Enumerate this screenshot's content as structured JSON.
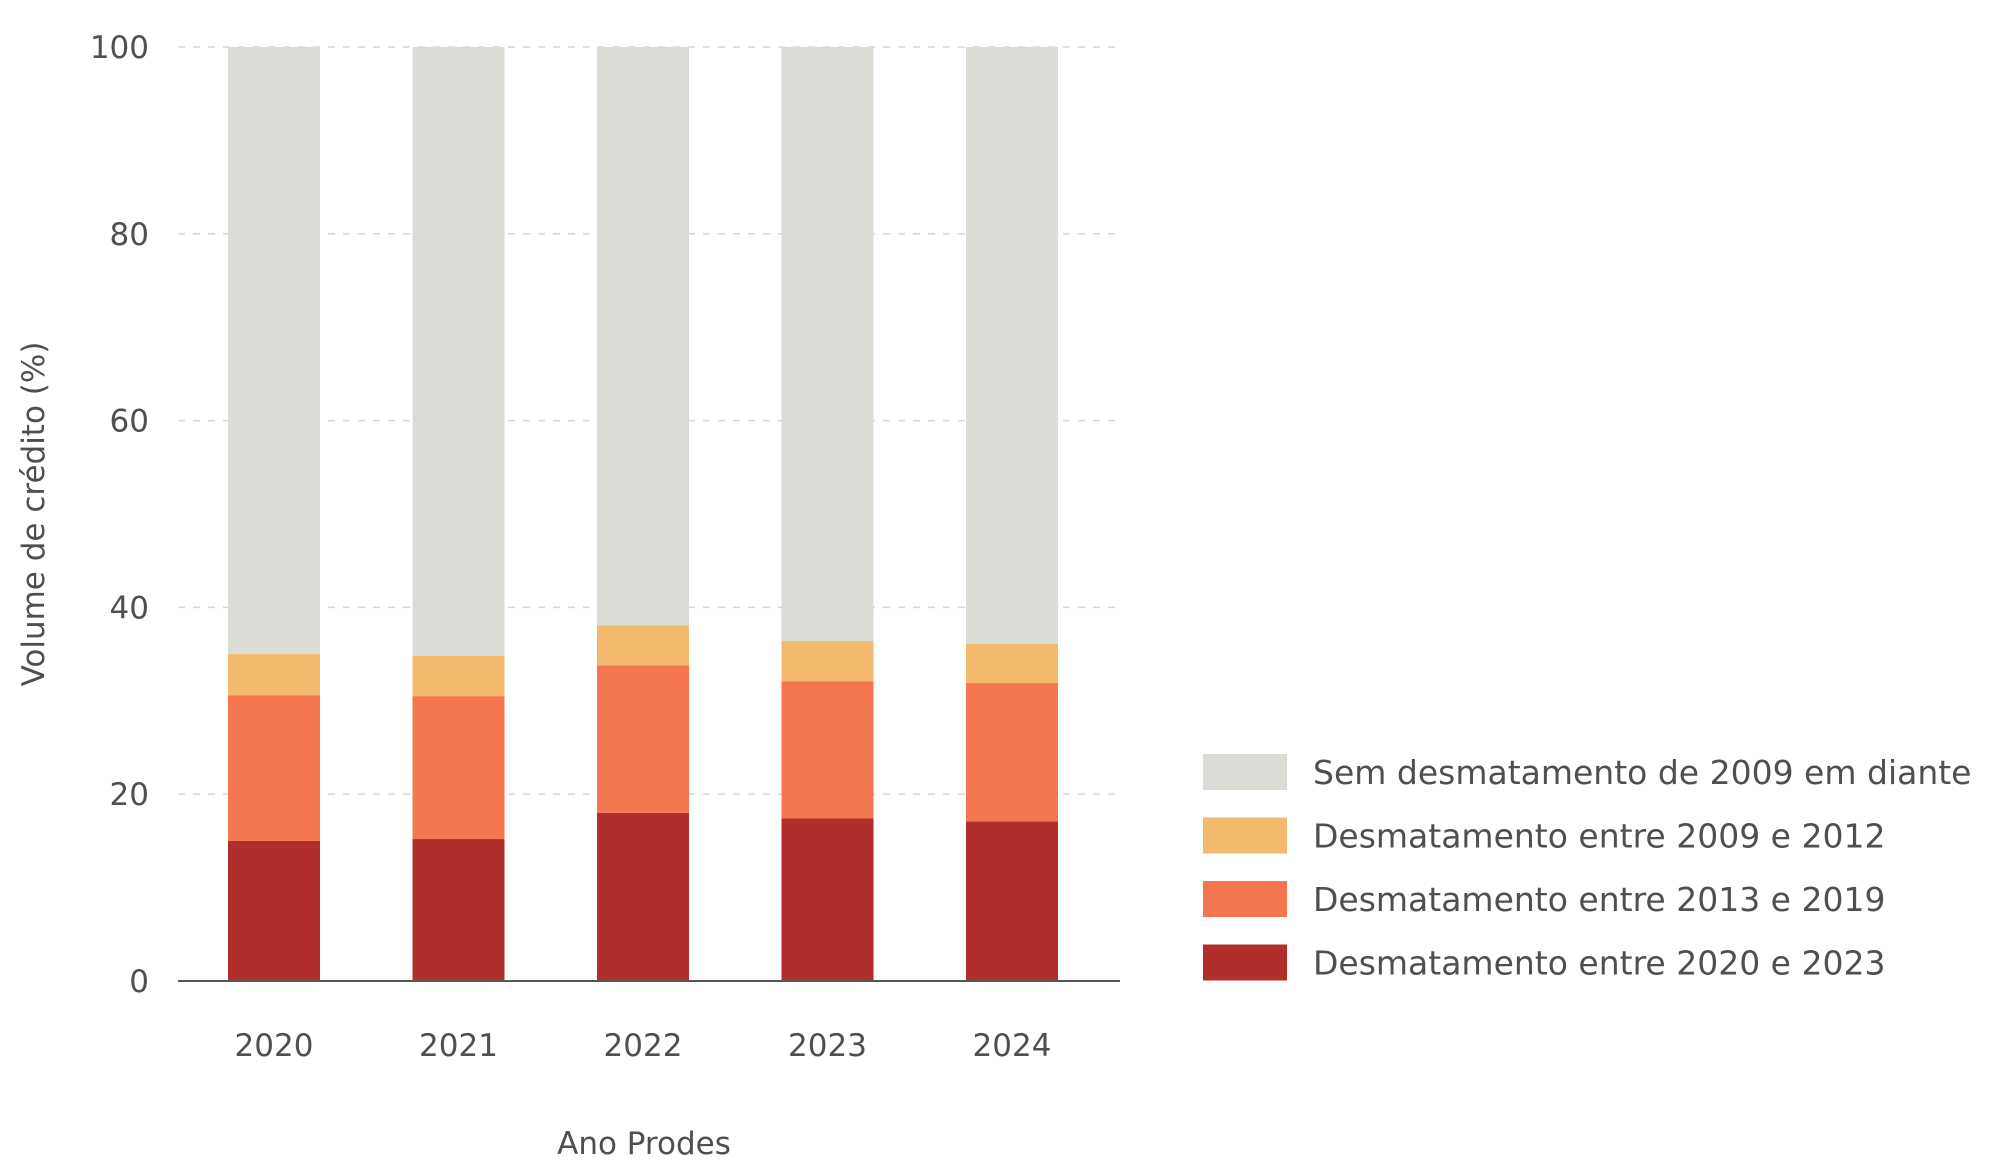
{
  "chart_data": {
    "type": "bar",
    "stacked": true,
    "categories": [
      "2020",
      "2021",
      "2022",
      "2023",
      "2024"
    ],
    "series": [
      {
        "name": "Desmatamento entre 2020 e 2023",
        "color": "#b22e2b",
        "values": [
          15.0,
          15.2,
          18.0,
          17.4,
          17.1
        ]
      },
      {
        "name": "Desmatamento entre 2013 e 2019",
        "color": "#f4764f",
        "values": [
          15.6,
          15.3,
          15.8,
          14.7,
          14.8
        ]
      },
      {
        "name": "Desmatamento entre 2009 e 2012",
        "color": "#f3b96c",
        "values": [
          4.4,
          4.3,
          4.3,
          4.3,
          4.2
        ]
      },
      {
        "name": "Sem desmatamento de 2009 em diante",
        "color": "#dbdcd5",
        "values": [
          65.0,
          65.2,
          61.9,
          63.6,
          63.9
        ]
      }
    ],
    "legend_order": [
      "Sem desmatamento de 2009 em diante",
      "Desmatamento entre 2009 e 2012",
      "Desmatamento entre 2013 e 2019",
      "Desmatamento entre 2020 e 2023"
    ],
    "xlabel": "Ano Prodes",
    "ylabel": "Volume de crédito (%)",
    "ylim": [
      0,
      100
    ],
    "yticks": [
      0,
      20,
      40,
      60,
      80,
      100
    ],
    "grid": {
      "y": true,
      "style": "dashed",
      "color": "#d6d6d6"
    },
    "legend_position": "bottom-right"
  }
}
